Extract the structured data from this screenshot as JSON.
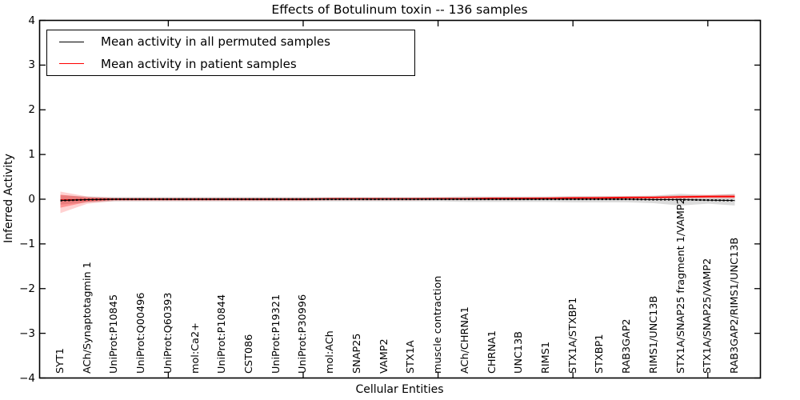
{
  "title": "Effects of Botulinum toxin -- 136 samples",
  "legend": {
    "position": "upper left",
    "entries": [
      {
        "label": "Mean activity in all permuted samples",
        "color": "#000000"
      },
      {
        "label": "Mean activity in patient samples",
        "color": "#ff0000"
      }
    ]
  },
  "chart_data": {
    "type": "line",
    "title": "Effects of Botulinum toxin -- 136 samples",
    "xlabel": "Cellular Entities",
    "ylabel": "Inferred Activity",
    "ylim": [
      -4,
      4
    ],
    "grid": false,
    "legend_position": "upper left",
    "ytick_labels": [
      "4",
      "3",
      "2",
      "1",
      "0",
      "−1",
      "−2",
      "−3",
      "−4"
    ],
    "ytick_values": [
      4,
      3,
      2,
      1,
      0,
      -1,
      -2,
      -3,
      -4
    ],
    "x_major_tick_indices": [
      4,
      9,
      14,
      19,
      24
    ],
    "categories": [
      "SYT1",
      "ACh/Synaptotagmin 1",
      "UniProt:P10845",
      "UniProt:Q00496",
      "UniProt:Q60393",
      "mol:Ca2+",
      "UniProt:P10844",
      "CST086",
      "UniProt:P19321",
      "UniProt:P30996",
      "mol:ACh",
      "SNAP25",
      "VAMP2",
      "STX1A",
      "muscle contraction",
      "ACh/CHRNA1",
      "CHRNA1",
      "UNC13B",
      "RIMS1",
      "STX1A/STXBP1",
      "STXBP1",
      "RAB3GAP2",
      "RIMS1/UNC13B",
      "STX1A/SNAP25 fragment 1/VAMP2",
      "STX1A/SNAP25/VAMP2",
      "RAB3GAP2/RIMS1/UNC13B"
    ],
    "series": [
      {
        "name": "Mean activity in all permuted samples",
        "color": "#000000",
        "style": "solid-with-dot-overlay",
        "values": [
          -0.03,
          -0.01,
          0,
          0,
          0,
          0,
          0,
          0,
          0,
          0,
          0,
          0,
          0,
          0,
          0,
          0,
          0,
          0,
          0,
          0,
          0,
          0,
          -0.01,
          -0.01,
          -0.02,
          -0.03
        ]
      },
      {
        "name": "Mean activity in patient samples",
        "color": "#ff0000",
        "style": "solid",
        "values": [
          -0.02,
          -0.01,
          0,
          0,
          0,
          0,
          0,
          0,
          0,
          0,
          0.01,
          0.01,
          0.01,
          0.01,
          0.01,
          0.01,
          0.02,
          0.02,
          0.02,
          0.03,
          0.03,
          0.04,
          0.04,
          0.05,
          0.06,
          0.06
        ]
      }
    ],
    "bands": [
      {
        "name": "permuted-confidence-band",
        "color": "#999999",
        "opacity": 0.35,
        "upper": [
          0.09,
          0.06,
          0.05,
          0.05,
          0.05,
          0.05,
          0.05,
          0.05,
          0.05,
          0.05,
          0.05,
          0.05,
          0.05,
          0.05,
          0.05,
          0.06,
          0.06,
          0.06,
          0.06,
          0.07,
          0.07,
          0.07,
          0.08,
          0.12,
          0.09,
          0.12
        ],
        "lower": [
          -0.12,
          -0.07,
          -0.05,
          -0.05,
          -0.05,
          -0.05,
          -0.05,
          -0.05,
          -0.05,
          -0.05,
          -0.05,
          -0.05,
          -0.05,
          -0.05,
          -0.05,
          -0.06,
          -0.06,
          -0.06,
          -0.06,
          -0.07,
          -0.07,
          -0.07,
          -0.09,
          -0.14,
          -0.1,
          -0.14
        ]
      },
      {
        "name": "patient-confidence-band-outer",
        "color": "#ff0000",
        "opacity": 0.18,
        "upper": [
          0.17,
          0.06,
          0.03,
          0.03,
          0.03,
          0.03,
          0.03,
          0.03,
          0.03,
          0.03,
          0.03,
          0.03,
          0.03,
          0.03,
          0.04,
          0.04,
          0.04,
          0.04,
          0.05,
          0.05,
          0.06,
          0.06,
          0.07,
          0.09,
          0.1,
          0.11
        ],
        "lower": [
          -0.31,
          -0.1,
          -0.04,
          -0.04,
          -0.04,
          -0.04,
          -0.04,
          -0.04,
          -0.04,
          -0.04,
          -0.03,
          -0.03,
          -0.03,
          -0.03,
          -0.02,
          -0.02,
          -0.02,
          -0.02,
          -0.01,
          -0.01,
          0.0,
          0.0,
          0.01,
          0.01,
          0.02,
          0.02
        ]
      },
      {
        "name": "patient-confidence-band-inner",
        "color": "#ff0000",
        "opacity": 0.3,
        "upper": [
          0.1,
          0.04,
          0.02,
          0.02,
          0.02,
          0.02,
          0.02,
          0.02,
          0.02,
          0.02,
          0.02,
          0.02,
          0.02,
          0.02,
          0.03,
          0.03,
          0.03,
          0.03,
          0.03,
          0.04,
          0.04,
          0.05,
          0.05,
          0.07,
          0.08,
          0.08
        ],
        "lower": [
          -0.19,
          -0.06,
          -0.02,
          -0.02,
          -0.02,
          -0.02,
          -0.02,
          -0.02,
          -0.02,
          -0.02,
          -0.01,
          -0.01,
          -0.01,
          -0.01,
          -0.01,
          -0.01,
          0.0,
          0.0,
          0.0,
          0.01,
          0.01,
          0.02,
          0.02,
          0.03,
          0.04,
          0.04
        ]
      }
    ]
  }
}
